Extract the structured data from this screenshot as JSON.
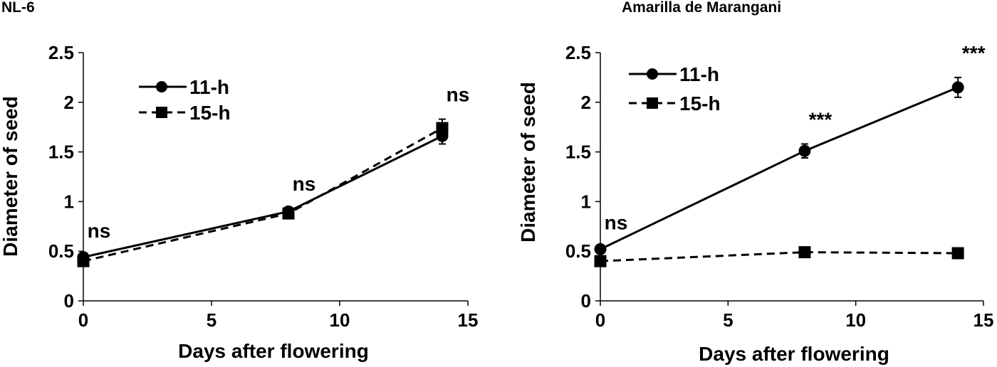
{
  "chart_data": [
    {
      "type": "line",
      "title": "NL-6",
      "xlabel": "Days after flowering",
      "ylabel": "Diameter of seed",
      "xlim": [
        0,
        15
      ],
      "ylim": [
        0,
        2.5
      ],
      "xticks": [
        "0",
        "5",
        "10",
        "15"
      ],
      "yticks": [
        "0",
        "0.5",
        "1",
        "1.5",
        "2",
        "2.5"
      ],
      "x": [
        0,
        8,
        14
      ],
      "legend_position": "top-left",
      "series": [
        {
          "name": "11-h",
          "marker": "circle",
          "line": "solid",
          "values": [
            0.44,
            0.9,
            1.66
          ],
          "errors": [
            0.02,
            0.03,
            0.08
          ]
        },
        {
          "name": "15-h",
          "marker": "square",
          "line": "dashed",
          "values": [
            0.4,
            0.88,
            1.74
          ],
          "errors": [
            0.02,
            0.03,
            0.09
          ]
        }
      ],
      "annotations": [
        {
          "x": 0,
          "text": "ns"
        },
        {
          "x": 8,
          "text": "ns"
        },
        {
          "x": 14,
          "text": "ns"
        }
      ]
    },
    {
      "type": "line",
      "title": "Amarilla de Marangani",
      "xlabel": "Days after flowering",
      "ylabel": "Diameter of seed",
      "xlim": [
        0,
        15
      ],
      "ylim": [
        0,
        2.5
      ],
      "xticks": [
        "0",
        "5",
        "10",
        "15"
      ],
      "yticks": [
        "0",
        "0.5",
        "1",
        "1.5",
        "2",
        "2.5"
      ],
      "x": [
        0,
        8,
        14
      ],
      "legend_position": "top-left",
      "series": [
        {
          "name": "11-h",
          "marker": "circle",
          "line": "solid",
          "values": [
            0.52,
            1.51,
            2.15
          ],
          "errors": [
            0.02,
            0.07,
            0.1
          ]
        },
        {
          "name": "15-h",
          "marker": "square",
          "line": "dashed",
          "values": [
            0.4,
            0.49,
            0.48
          ],
          "errors": [
            0.01,
            0.01,
            0.01
          ]
        }
      ],
      "annotations": [
        {
          "x": 0,
          "text": "ns"
        },
        {
          "x": 8,
          "text": "***"
        },
        {
          "x": 14,
          "text": "***"
        }
      ]
    }
  ]
}
